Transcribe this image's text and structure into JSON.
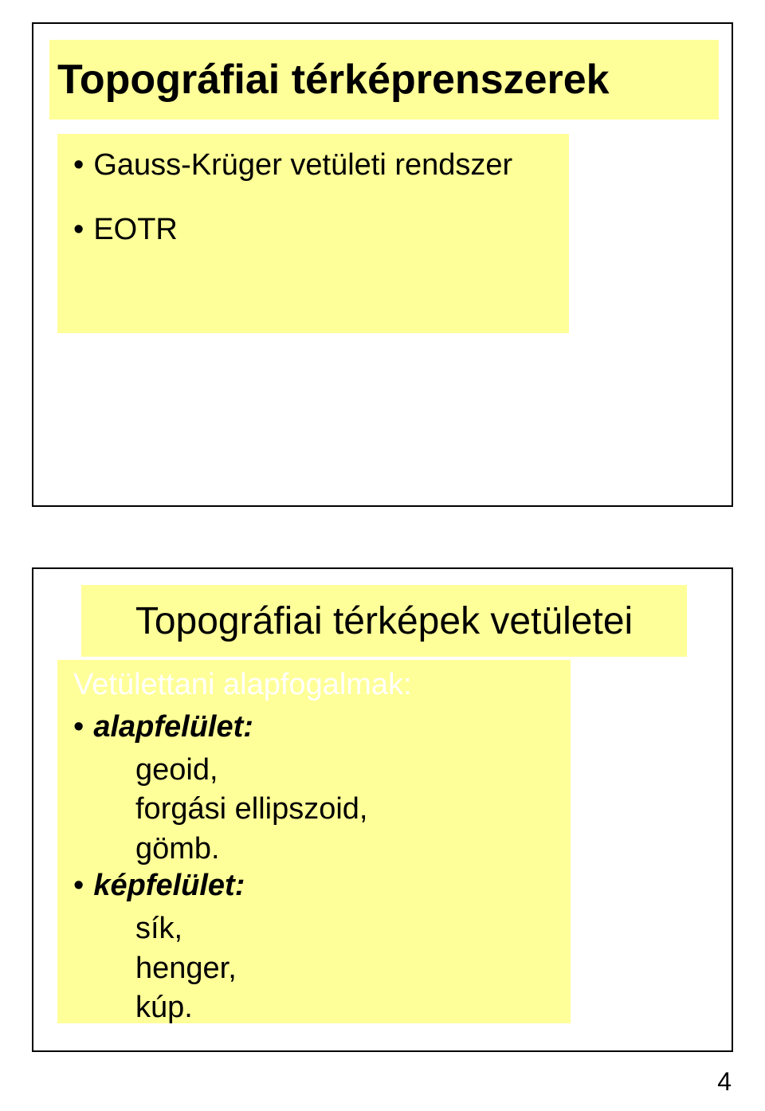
{
  "colors": {
    "slide_bg": "#ffffff",
    "yellow_bg": "#ffff99",
    "text_color": "#000000",
    "white_text": "#ffffff",
    "border_color": "#000000"
  },
  "slide_top": {
    "title": "Topográfiai térképrenszerek",
    "bullets": [
      "Gauss-Krüger vetületi rendszer",
      "EOTR"
    ]
  },
  "slide_bottom": {
    "title": "Topográfiai térképek vetületei",
    "subtitle": "Vetülettani alapfogalmak:",
    "items": [
      {
        "label": "alapfelület:",
        "subitems": [
          "geoid,",
          "forgási ellipszoid,",
          "gömb."
        ]
      },
      {
        "label": "képfelület:",
        "subitems": [
          "sík,",
          "henger,",
          "kúp."
        ]
      }
    ]
  },
  "page_number": "4"
}
